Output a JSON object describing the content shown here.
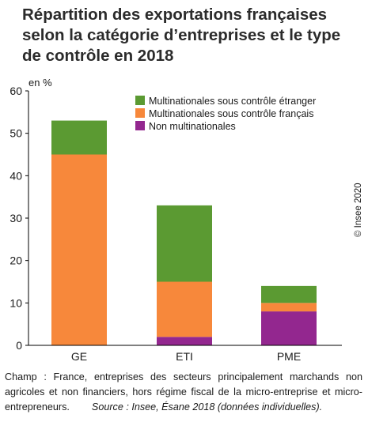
{
  "title": "Répartition des exportations françaises selon la catégorie d’entreprises et le type de contrôle en 2018",
  "unit_label": "en %",
  "copyright": "© Insee 2020",
  "note": {
    "champ": "Champ : France, entreprises des secteurs principalement marchands non agricoles et non financiers, hors régime fiscal de la micro-entreprise et micro-entrepreneurs.",
    "source": "Source : Insee, Ésane 2018 (données individuelles)."
  },
  "chart_data": {
    "type": "bar",
    "stacked": true,
    "categories": [
      "GE",
      "ETI",
      "PME"
    ],
    "series": [
      {
        "name": "Non multinationales",
        "values": [
          0,
          2,
          8
        ],
        "color": "#93278f"
      },
      {
        "name": "Multinationales sous contrôle français",
        "values": [
          45,
          13,
          2
        ],
        "color": "#f7883b"
      },
      {
        "name": "Multinationales sous contrôle étranger",
        "values": [
          8,
          18,
          4
        ],
        "color": "#5b9a32"
      }
    ],
    "legend_order": [
      "Multinationales sous contrôle étranger",
      "Multinationales sous contrôle français",
      "Non multinationales"
    ],
    "legend_position": "top-right",
    "ylim": [
      0,
      60
    ],
    "yticks": [
      0,
      10,
      20,
      30,
      40,
      50,
      60
    ],
    "ylabel": "en %",
    "xlabel": "",
    "grid": false
  }
}
